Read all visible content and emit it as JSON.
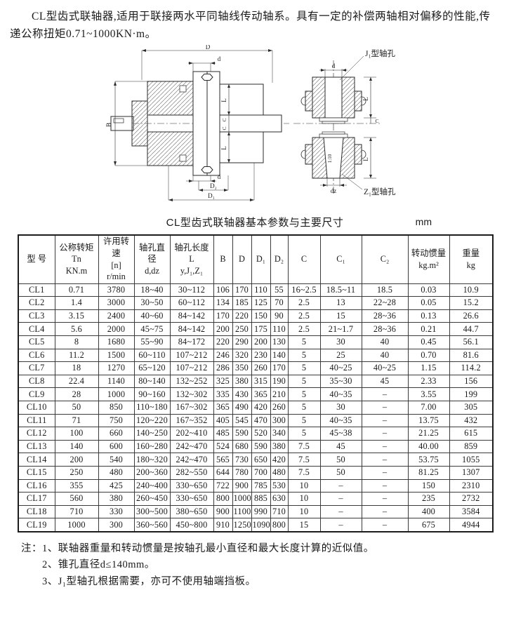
{
  "intro": {
    "text": "CL型齿式联轴器,适用于联接两水平同轴线传动轴系。具有一定的补偿两轴相对偏移的性能,传递公称扭矩0.71~1000KN·m。"
  },
  "drawing": {
    "dim_D": "D",
    "dim_d_top": "d",
    "dim_B": "B",
    "dim_L": "L",
    "dim_C": "C",
    "dim_d_bottom": "d",
    "dim_D2": "D₂",
    "dim_D1": "D₁",
    "j1_label": "J₁型轴孔",
    "z1_label": "Z₁型轴孔",
    "dim_d_right": "d",
    "dim_L_right": "L",
    "dim_C_right": "C",
    "taper": "1:10",
    "dim_dz": "dz"
  },
  "table": {
    "title": "CL型齿式联轴器基本参数与主要尺寸",
    "unit": "mm",
    "headers": [
      "型  号",
      "公称转矩\nTn\nKN.m",
      "许用转速\n[n]\nr/min",
      "轴孔直径\nd,dz",
      "轴孔长度\nL\ny,J₁,Z₁",
      "B",
      "D",
      "D₁",
      "D₂",
      "C",
      "C₁",
      "C₂",
      "转动惯量\nkg.m²",
      "重量\nkg"
    ],
    "rows": [
      [
        "CL1",
        "0.71",
        "3780",
        "18~40",
        "30~112",
        "106",
        "170",
        "110",
        "55",
        "16~2.5",
        "18.5~11",
        "18.5",
        "0.03",
        "10.9"
      ],
      [
        "CL2",
        "1.4",
        "3000",
        "30~50",
        "60~112",
        "134",
        "185",
        "125",
        "70",
        "2.5",
        "13",
        "22~28",
        "0.05",
        "15.2"
      ],
      [
        "CL3",
        "3.15",
        "2400",
        "40~60",
        "84~142",
        "170",
        "220",
        "150",
        "90",
        "2.5",
        "15",
        "28~36",
        "0.13",
        "26.6"
      ],
      [
        "CL4",
        "5.6",
        "2000",
        "45~75",
        "84~142",
        "200",
        "250",
        "175",
        "110",
        "2.5",
        "21~1.7",
        "28~36",
        "0.21",
        "44.7"
      ],
      [
        "CL5",
        "8",
        "1680",
        "55~90",
        "84~172",
        "220",
        "290",
        "200",
        "130",
        "5",
        "30",
        "40",
        "0.45",
        "56.1"
      ],
      [
        "CL6",
        "11.2",
        "1500",
        "60~110",
        "107~212",
        "246",
        "320",
        "230",
        "140",
        "5",
        "25",
        "40",
        "0.70",
        "81.6"
      ],
      [
        "CL7",
        "18",
        "1270",
        "65~120",
        "107~212",
        "286",
        "350",
        "260",
        "170",
        "5",
        "40~25",
        "40~25",
        "1.15",
        "114.2"
      ],
      [
        "CL8",
        "22.4",
        "1140",
        "80~140",
        "132~252",
        "325",
        "380",
        "315",
        "190",
        "5",
        "35~30",
        "45",
        "2.33",
        "156"
      ],
      [
        "CL9",
        "28",
        "1000",
        "90~160",
        "132~302",
        "335",
        "430",
        "365",
        "210",
        "5",
        "40~35",
        "–",
        "3.55",
        "199"
      ],
      [
        "CL10",
        "50",
        "850",
        "110~180",
        "167~302",
        "365",
        "490",
        "420",
        "260",
        "5",
        "30",
        "–",
        "7.00",
        "305"
      ],
      [
        "CL11",
        "71",
        "750",
        "120~220",
        "167~352",
        "405",
        "545",
        "470",
        "300",
        "5",
        "40~35",
        "–",
        "13.75",
        "432"
      ],
      [
        "CL12",
        "100",
        "660",
        "140~250",
        "202~410",
        "485",
        "590",
        "520",
        "340",
        "5",
        "45~38",
        "–",
        "21.25",
        "615"
      ],
      [
        "CL13",
        "140",
        "600",
        "160~280",
        "242~470",
        "524",
        "680",
        "590",
        "380",
        "7.5",
        "45",
        "–",
        "40.00",
        "859"
      ],
      [
        "CL14",
        "200",
        "540",
        "180~320",
        "242~470",
        "565",
        "730",
        "650",
        "420",
        "7.5",
        "50",
        "–",
        "53.75",
        "1055"
      ],
      [
        "CL15",
        "250",
        "480",
        "200~360",
        "282~550",
        "644",
        "780",
        "700",
        "480",
        "7.5",
        "50",
        "–",
        "81.25",
        "1307"
      ],
      [
        "CL16",
        "355",
        "425",
        "240~400",
        "330~650",
        "722",
        "900",
        "785",
        "530",
        "10",
        "–",
        "–",
        "150",
        "2310"
      ],
      [
        "CL17",
        "560",
        "380",
        "260~450",
        "330~650",
        "800",
        "1000",
        "885",
        "630",
        "10",
        "–",
        "–",
        "235",
        "2732"
      ],
      [
        "CL18",
        "710",
        "330",
        "300~500",
        "380~650",
        "900",
        "1100",
        "990",
        "710",
        "10",
        "–",
        "–",
        "400",
        "3584"
      ],
      [
        "CL19",
        "1000",
        "300",
        "360~560",
        "450~800",
        "910",
        "1250",
        "1090",
        "800",
        "15",
        "–",
        "–",
        "675",
        "4944"
      ]
    ]
  },
  "notes": {
    "prefix": "注：",
    "items": [
      "1、联轴器重量和转动惯量是按轴孔最小直径和最大长度计算的近似值。",
      "2、锥孔直径d≤140mm。",
      "3、J₁型轴孔根据需要，亦可不使用轴端挡板。"
    ]
  }
}
